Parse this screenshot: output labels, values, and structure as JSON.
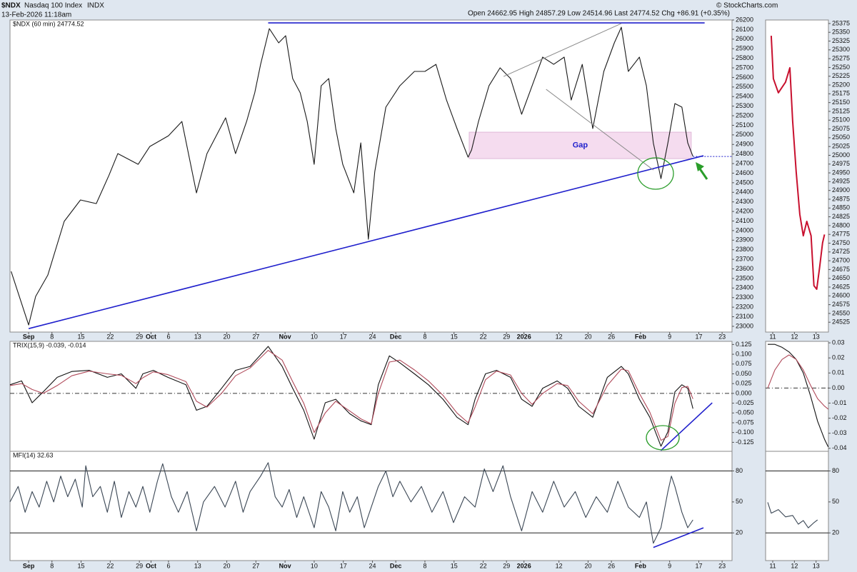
{
  "header": {
    "symbol": "$NDX",
    "name": "Nasdaq 100 Index",
    "exchange": "INDX",
    "date": "13-Feb-2026 11:18am",
    "quote": "Open 24662.95 High 24857.29 Low 24514.96 Last 24774.52 Chg +86.91 (+0.35%)",
    "copyright": "© StockCharts.com"
  },
  "chart_data": [
    {
      "type": "line",
      "title": "$NDX (60 min) 24774.52",
      "x": [
        -3,
        0,
        1.2,
        3.3,
        6.1,
        8.9,
        11.6,
        13.8,
        15.3,
        18.8,
        20.8,
        24,
        26.3,
        28.8,
        30.6,
        33.8,
        35.5,
        37.4,
        38.8,
        39.8,
        41.3,
        42.9,
        44.1,
        45.3,
        46.6,
        47.8,
        49,
        50.2,
        51.5,
        52.7,
        53.9,
        55.8,
        57,
        58.3,
        59.4,
        61.3,
        63.7,
        66.2,
        68,
        69.9,
        71.7,
        73.5,
        75.4,
        76,
        77.2,
        79,
        80.9,
        82.7,
        84.6,
        86.4,
        88.2,
        90.1,
        91.9,
        93.1,
        95,
        96.8,
        98.7,
        100.5,
        101.7,
        102.9,
        104.8,
        106,
        107.2,
        108.5,
        109.7,
        110.9,
        112.1,
        113.1,
        114
      ],
      "series": [
        {
          "color": "#1a1a1a",
          "values": [
            23573,
            23014,
            23312,
            23536,
            24096,
            24320,
            24282,
            24580,
            24804,
            24692,
            24879,
            24991,
            25140,
            24394,
            24804,
            25178,
            24804,
            25140,
            25439,
            25737,
            26110,
            25961,
            26036,
            25588,
            25439,
            25140,
            24692,
            25513,
            25588,
            25066,
            24692,
            24394,
            24916,
            23909,
            24618,
            25290,
            25513,
            25663,
            25663,
            25737,
            25364,
            25066,
            24767,
            24842,
            25140,
            25513,
            25700,
            25588,
            25215,
            25513,
            25812,
            25737,
            25812,
            25364,
            25737,
            25066,
            25663,
            25961,
            26125,
            25663,
            25812,
            25513,
            24916,
            24543,
            24916,
            25327,
            25290,
            24916,
            24774.52
          ]
        }
      ],
      "xlim": [
        -3.2,
        120.7
      ],
      "xticks": [
        {
          "value": 0,
          "label": "Sep"
        },
        {
          "value": 4,
          "label": "8"
        },
        {
          "value": 9,
          "label": "15"
        },
        {
          "value": 14,
          "label": "22"
        },
        {
          "value": 19,
          "label": "29"
        },
        {
          "value": 21,
          "label": "Oct"
        },
        {
          "value": 24,
          "label": "6"
        },
        {
          "value": 29,
          "label": "13"
        },
        {
          "value": 34,
          "label": "20"
        },
        {
          "value": 39,
          "label": "27"
        },
        {
          "value": 44,
          "label": "Nov"
        },
        {
          "value": 49,
          "label": "10"
        },
        {
          "value": 54,
          "label": "17"
        },
        {
          "value": 59,
          "label": "24"
        },
        {
          "value": 63,
          "label": "Dec"
        },
        {
          "value": 68,
          "label": "8"
        },
        {
          "value": 73,
          "label": "15"
        },
        {
          "value": 78,
          "label": "22"
        },
        {
          "value": 82,
          "label": "29"
        },
        {
          "value": 85,
          "label": "2026"
        },
        {
          "value": 91,
          "label": "12"
        },
        {
          "value": 96,
          "label": "20"
        },
        {
          "value": 100,
          "label": "26"
        },
        {
          "value": 105,
          "label": "Feb"
        },
        {
          "value": 110,
          "label": "9"
        },
        {
          "value": 115,
          "label": "17"
        },
        {
          "value": 119,
          "label": "23"
        }
      ],
      "ylim": [
        22940,
        26200
      ],
      "yticks": [
        23000,
        23100,
        23200,
        23300,
        23400,
        23500,
        23600,
        23700,
        23800,
        23900,
        24000,
        24100,
        24200,
        24300,
        24400,
        24500,
        24600,
        24700,
        24800,
        24900,
        25000,
        25100,
        25200,
        25300,
        25400,
        25500,
        25600,
        25700,
        25800,
        25900,
        26000,
        26100,
        26200
      ],
      "zone": {
        "x": [
          75.6,
          113.7
        ],
        "y": [
          24752,
          25028
        ],
        "label": "Gap",
        "color": "#f5dcef"
      },
      "lines": [
        {
          "x": [
            0,
            115.8
          ],
          "y": [
            22976,
            24782
          ],
          "color": "#1f1fcc"
        },
        {
          "x": [
            41.1,
            116
          ],
          "y": [
            26170,
            26170
          ],
          "color": "#1f1fcc"
        },
        {
          "x": [
            81.5,
            101.7
          ],
          "y": [
            25610,
            26163
          ],
          "color": "#8a8a8a"
        },
        {
          "x": [
            88.8,
            107.2
          ],
          "y": [
            25476,
            24633
          ],
          "color": "#8a8a8a"
        }
      ],
      "last_price_line": true
    },
    {
      "type": "line",
      "x": [
        10.93,
        11.03,
        11.26,
        11.59,
        11.79,
        11.92,
        12.08,
        12.25,
        12.41,
        12.57,
        12.77,
        12.9,
        13.03,
        13.16,
        13.3,
        13.39
      ],
      "series": [
        {
          "color": "#c8102e",
          "values": [
            25340,
            25218,
            25178,
            25208,
            25249,
            25097,
            24954,
            24832,
            24771,
            24812,
            24771,
            24629,
            24619,
            24680,
            24751,
            24774.52
          ]
        }
      ],
      "xlim": [
        10.67,
        13.57
      ],
      "xticks": [
        11,
        12,
        13
      ],
      "ylim": [
        24497,
        25385
      ],
      "yticks": [
        24525,
        24550,
        24575,
        24600,
        24625,
        24650,
        24675,
        24700,
        24725,
        24750,
        24775,
        24800,
        24825,
        24850,
        24875,
        24900,
        24925,
        24950,
        24975,
        25000,
        25025,
        25050,
        25075,
        25100,
        25125,
        25150,
        25175,
        25200,
        25225,
        25250,
        25275,
        25300,
        25325,
        25350,
        25375
      ]
    },
    {
      "type": "line",
      "title": "TRIX(15,9) -0.039, -0.014",
      "x": [
        -3.2,
        -1.2,
        0.6,
        2.5,
        4.9,
        7.4,
        10.4,
        13.5,
        15.9,
        18.4,
        19.6,
        21.4,
        23.9,
        27,
        28.8,
        30.6,
        33.1,
        35.5,
        38,
        41.1,
        43.5,
        45.3,
        47.2,
        49,
        50.9,
        52.7,
        55.1,
        57,
        58.8,
        60,
        61.9,
        63.7,
        66.2,
        68.6,
        71.1,
        73.5,
        75.4,
        76.6,
        78.4,
        80.3,
        82.7,
        84.6,
        86.4,
        88.2,
        90.7,
        92.5,
        94.4,
        96.8,
        99.3,
        101.7,
        102.9,
        104.8,
        106.6,
        108.5,
        109.7,
        110.9,
        112.1,
        113.1,
        114
      ],
      "series": [
        {
          "color": "#111111",
          "values": [
            0.022,
            0.032,
            -0.024,
            0.004,
            0.041,
            0.056,
            0.059,
            0.041,
            0.05,
            0.013,
            0.05,
            0.059,
            0.041,
            0.022,
            -0.043,
            -0.033,
            0.013,
            0.059,
            0.069,
            0.12,
            0.069,
            0.013,
            -0.043,
            -0.117,
            -0.024,
            -0.015,
            -0.052,
            -0.07,
            -0.08,
            0.022,
            0.096,
            0.078,
            0.05,
            0.022,
            -0.015,
            -0.061,
            -0.08,
            -0.015,
            0.05,
            0.059,
            0.041,
            -0.015,
            -0.033,
            0.013,
            0.032,
            0.013,
            -0.033,
            -0.061,
            0.041,
            0.069,
            0.05,
            -0.015,
            -0.061,
            -0.135,
            -0.098,
            0.004,
            0.022,
            0.013,
            -0.039
          ]
        },
        {
          "color": "#b04a5a",
          "values": [
            0.02,
            0.025,
            0.01,
            0,
            0.02,
            0.045,
            0.057,
            0.05,
            0.046,
            0.025,
            0.04,
            0.055,
            0.048,
            0.03,
            -0.02,
            -0.035,
            0,
            0.045,
            0.065,
            0.11,
            0.085,
            0.03,
            -0.025,
            -0.1,
            -0.05,
            -0.02,
            -0.045,
            -0.065,
            -0.078,
            0,
            0.08,
            0.085,
            0.06,
            0.032,
            -0.005,
            -0.05,
            -0.075,
            -0.035,
            0.035,
            0.057,
            0.047,
            0,
            -0.028,
            0,
            0.025,
            0.02,
            -0.02,
            -0.052,
            0.02,
            0.062,
            0.058,
            0,
            -0.048,
            -0.12,
            -0.11,
            -0.025,
            0.015,
            0.018,
            -0.014
          ]
        }
      ],
      "xlim": [
        -3.2,
        120.7
      ],
      "ylim": [
        -0.148,
        0.133
      ],
      "yticks": [
        0.125,
        {
          "value": 0.1,
          "label": "0.100"
        },
        0.075,
        {
          "value": 0.05,
          "label": "0.050"
        },
        0.025,
        {
          "value": 0,
          "label": "0.000"
        },
        -0.025,
        {
          "value": -0.05,
          "label": "-0.050"
        },
        -0.075,
        {
          "value": -0.1,
          "label": "-0.100"
        },
        -0.125
      ],
      "lines": [
        {
          "x": [
            108.5,
            117.3
          ],
          "y": [
            -0.146,
            -0.024
          ],
          "color": "#1f1fcc"
        }
      ],
      "zero_line": true
    },
    {
      "type": "line",
      "x": [
        10.77,
        11.1,
        11.43,
        11.75,
        12.08,
        12.41,
        12.74,
        13.07,
        13.39,
        13.56
      ],
      "series": [
        {
          "color": "#111111",
          "values": [
            0.029,
            0.029,
            0.027,
            0.024,
            0.019,
            0.01,
            -0.005,
            -0.022,
            -0.034,
            -0.039
          ]
        },
        {
          "color": "#b04a5a",
          "values": [
            0,
            0.012,
            0.019,
            0.022,
            0.019,
            0.012,
            0.002,
            -0.007,
            -0.012,
            -0.014
          ]
        }
      ],
      "xlim": [
        10.67,
        13.57
      ],
      "ylim": [
        -0.042,
        0.031
      ],
      "yticks": [
        0.03,
        0.02,
        0.01,
        {
          "value": 0,
          "label": "0.00"
        },
        -0.01,
        -0.02,
        -0.03,
        -0.04
      ],
      "zero_line": true
    },
    {
      "type": "line",
      "title": "MFI(14) 32.63",
      "x": [
        -3.2,
        -1.8,
        -0.6,
        0.6,
        1.8,
        3.1,
        4.3,
        5.5,
        6.7,
        8,
        9.2,
        9.8,
        11,
        12.3,
        13.5,
        14.7,
        15.9,
        17.2,
        18.4,
        19.6,
        20.8,
        22.1,
        23,
        24.5,
        25.7,
        27.2,
        28.8,
        30,
        31.9,
        33.7,
        35.5,
        36.8,
        38,
        39.8,
        41.1,
        42.3,
        43.5,
        44.7,
        46,
        47.2,
        49,
        50.2,
        51.5,
        52.7,
        53.9,
        55.1,
        56.4,
        57.6,
        58.8,
        60,
        61.3,
        62.5,
        63.7,
        65.6,
        67.4,
        69.2,
        71.1,
        72.9,
        74.8,
        76.6,
        78.2,
        79.7,
        81.4,
        82.7,
        84.6,
        86.4,
        88.2,
        90.1,
        91.9,
        93.8,
        95.6,
        97.4,
        99.3,
        101.1,
        102.9,
        104.8,
        106,
        107.2,
        108.5,
        109.7,
        110.3,
        110.9,
        112.1,
        113.1,
        114
      ],
      "series": [
        {
          "color": "#3a4654",
          "values": [
            50,
            65,
            40,
            60,
            45,
            70,
            50,
            75,
            55,
            72,
            45,
            85,
            55,
            65,
            40,
            70,
            35,
            60,
            45,
            65,
            40,
            70,
            87,
            55,
            40,
            60,
            22,
            50,
            65,
            45,
            70,
            40,
            60,
            75,
            88,
            55,
            45,
            62,
            35,
            55,
            25,
            60,
            45,
            22,
            60,
            40,
            55,
            25,
            45,
            65,
            80,
            55,
            70,
            50,
            65,
            40,
            60,
            30,
            55,
            45,
            82,
            60,
            85,
            55,
            22,
            60,
            40,
            70,
            45,
            60,
            35,
            55,
            40,
            70,
            45,
            35,
            50,
            10,
            25,
            60,
            75,
            65,
            40,
            25,
            32.63
          ]
        }
      ],
      "xlim": [
        -3.2,
        120.7
      ],
      "ylim": [
        -6.8,
        99
      ],
      "yticks": [
        80,
        50,
        20
      ],
      "hlines": [
        80,
        20
      ],
      "lines": [
        {
          "x": [
            107.2,
            115.8
          ],
          "y": [
            5.9,
            24.9
          ],
          "color": "#1f1fcc"
        }
      ]
    },
    {
      "type": "line",
      "x": [
        10.77,
        10.93,
        11.26,
        11.59,
        11.92,
        12.18,
        12.41,
        12.64,
        12.9,
        13.07
      ],
      "series": [
        {
          "color": "#3a4654",
          "values": [
            49.6,
            39.1,
            42.6,
            35.5,
            36.9,
            28.5,
            32,
            24.9,
            29.9,
            32.63
          ]
        }
      ],
      "xlim": [
        10.67,
        13.57
      ],
      "ylim": [
        -6.8,
        99
      ],
      "yticks": [
        80,
        50,
        20
      ],
      "hlines": [
        80,
        20
      ]
    }
  ]
}
